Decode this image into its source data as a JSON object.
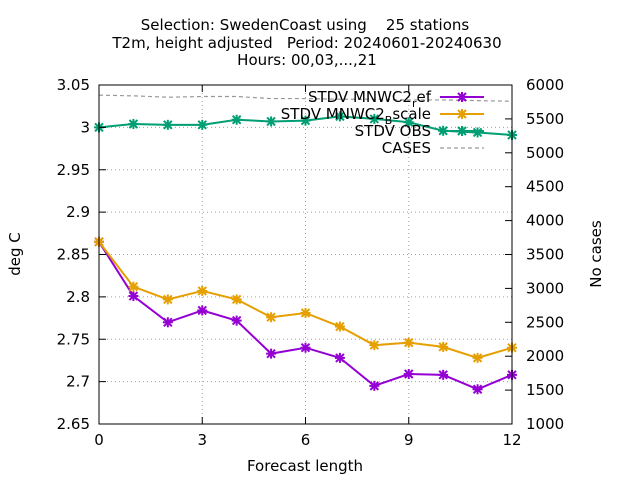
{
  "chart_data": {
    "type": "line",
    "title_lines": [
      "Selection: SwedenCoast using    25 stations",
      "T2m, height adjusted   Period: 20240601-20240630",
      "Hours: 00,03,...,21"
    ],
    "xlabel": "Forecast length",
    "ylabel": "deg C",
    "y2label": "No cases",
    "xlim": [
      0,
      12
    ],
    "ylim": [
      2.65,
      3.05
    ],
    "y2lim": [
      1000,
      6000
    ],
    "xticks": [
      0,
      3,
      6,
      9,
      12
    ],
    "yticks": [
      "2.65",
      "2.7",
      "2.75",
      "2.8",
      "2.85",
      "2.9",
      "2.95",
      "3",
      "3.05"
    ],
    "y2ticks": [
      "1000",
      "1500",
      "2000",
      "2500",
      "3000",
      "3500",
      "4000",
      "4500",
      "5000",
      "5500",
      "6000"
    ],
    "grid": true,
    "legend_position": "top-right",
    "x": [
      0,
      1,
      2,
      3,
      4,
      5,
      6,
      7,
      8,
      9,
      10,
      11,
      12
    ],
    "series": [
      {
        "name": "STDV MNWC2_ref",
        "legend_label": "STDV MNWC2",
        "legend_sub": "r",
        "legend_rest": "ef",
        "color": "#9400d3",
        "axis": "y",
        "marker": true,
        "values": [
          2.865,
          2.801,
          2.77,
          2.784,
          2.772,
          2.733,
          2.74,
          2.728,
          2.695,
          2.709,
          2.708,
          2.691,
          2.708
        ]
      },
      {
        "name": "STDV MNWC2_Bscale",
        "legend_label": "STDV MNWC2",
        "legend_sub": "B",
        "legend_rest": "scale",
        "color": "#e69f00",
        "axis": "y",
        "marker": true,
        "values": [
          2.865,
          2.812,
          2.797,
          2.807,
          2.797,
          2.776,
          2.781,
          2.765,
          2.743,
          2.746,
          2.741,
          2.728,
          2.74
        ]
      },
      {
        "name": "STDV OBS",
        "legend_label": "STDV OBS",
        "color": "#009e73",
        "axis": "y",
        "marker": true,
        "values": [
          3.0,
          3.004,
          3.003,
          3.003,
          3.009,
          3.007,
          3.008,
          3.013,
          3.01,
          3.006,
          2.996,
          2.994,
          2.991
        ]
      },
      {
        "name": "CASES",
        "legend_label": "CASES",
        "color": "#999999",
        "axis": "y2",
        "marker": false,
        "dashed": true,
        "values": [
          5850,
          5840,
          5820,
          5830,
          5830,
          5800,
          5800,
          5790,
          5790,
          5780,
          5780,
          5770,
          5760
        ]
      }
    ]
  }
}
